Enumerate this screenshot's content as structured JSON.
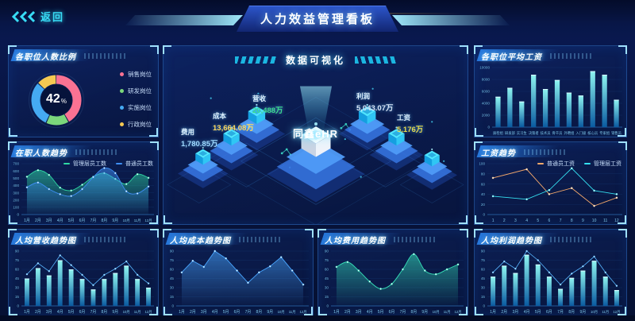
{
  "header": {
    "back_label": "返回",
    "title": "人力效益管理看板",
    "accent_color": "#38dcf5"
  },
  "panels": {
    "position_ratio": {
      "title": "各职位人数比例"
    },
    "headcount_trend": {
      "title": "在职人数趋势"
    },
    "revenue_trend": {
      "title": "人均营收趋势图"
    },
    "visualization": {
      "title": "数据可视化",
      "brand": "同鑫eHR",
      "metrics": [
        {
          "label": "费用",
          "value": "1,780.85万",
          "color": "#9fd9ff"
        },
        {
          "label": "成本",
          "value": "13,664.08万",
          "color": "#ffd95e"
        },
        {
          "label": "营收",
          "value": "20,488万",
          "color": "#3ddc8f"
        },
        {
          "label": "利润",
          "value": "5,043.07万",
          "color": "#d8e6f7"
        },
        {
          "label": "工资",
          "value": "5,176万",
          "color": "#e5d94e"
        }
      ]
    },
    "cost_trend": {
      "title": "人均成本趋势图"
    },
    "expense_trend": {
      "title": "人均费用趋势图"
    },
    "avg_salary": {
      "title": "各职位平均工资"
    },
    "salary_trend": {
      "title": "工资趋势"
    },
    "profit_trend": {
      "title": "人均利润趋势图"
    }
  },
  "chart_data": {
    "position_ratio": {
      "type": "pie",
      "center_value": "42",
      "center_unit": "%",
      "segments": [
        {
          "label": "销售岗位",
          "value": 42,
          "color": "#fb7293"
        },
        {
          "label": "研发岗位",
          "value": 15,
          "color": "#7bd77b"
        },
        {
          "label": "实施岗位",
          "value": 30,
          "color": "#45aaf2"
        },
        {
          "label": "行政岗位",
          "value": 13,
          "color": "#f5c952"
        }
      ]
    },
    "headcount_trend": {
      "type": "area",
      "categories": [
        "1月",
        "2月",
        "3月",
        "4月",
        "5月",
        "6月",
        "7月",
        "8月",
        "9月",
        "10月",
        "11月",
        "12月"
      ],
      "y_ticks": [
        0,
        100,
        200,
        300,
        400,
        500,
        600,
        700
      ],
      "series": [
        {
          "name": "管理层员工数",
          "color": "#2fd8a4",
          "smooth": true,
          "fill": true,
          "values": [
            520,
            610,
            545,
            370,
            330,
            410,
            520,
            570,
            490,
            420,
            555,
            505
          ]
        },
        {
          "name": "普通员工数",
          "color": "#3e8ef5",
          "smooth": true,
          "fill": true,
          "values": [
            375,
            440,
            350,
            280,
            255,
            350,
            515,
            640,
            570,
            320,
            290,
            385
          ]
        }
      ]
    },
    "revenue_trend": {
      "type": "bar",
      "categories": [
        "1月",
        "2月",
        "3月",
        "4月",
        "5月",
        "6月",
        "7月",
        "8月",
        "9月",
        "10月",
        "11月",
        "12月"
      ],
      "y_ticks": [
        0,
        15,
        30,
        45,
        60,
        75,
        90
      ],
      "bars": [
        45,
        62,
        50,
        75,
        60,
        44,
        27,
        44,
        54,
        66,
        44,
        30
      ],
      "line": [
        52,
        70,
        57,
        83,
        67,
        51,
        34,
        51,
        61,
        73,
        51,
        37
      ]
    },
    "cost_trend": {
      "type": "area",
      "categories": [
        "1月",
        "2月",
        "3月",
        "4月",
        "5月",
        "6月",
        "7月",
        "8月",
        "9月",
        "10月",
        "11月",
        "12月"
      ],
      "y_ticks": [
        0,
        15,
        30,
        45,
        60,
        75,
        90
      ],
      "series": [
        {
          "name": "人均成本",
          "color": "#49a6ff",
          "smooth": false,
          "fill": true,
          "values": [
            55,
            74,
            64,
            90,
            78,
            58,
            38,
            55,
            65,
            80,
            58,
            35
          ]
        }
      ]
    },
    "expense_trend": {
      "type": "area",
      "categories": [
        "1月",
        "2月",
        "3月",
        "4月",
        "5月",
        "6月",
        "7月",
        "8月",
        "9月",
        "10月",
        "11月",
        "12月"
      ],
      "y_ticks": [
        0,
        15,
        30,
        45,
        60,
        75,
        90
      ],
      "series": [
        {
          "name": "人均费用",
          "color": "#35e0b8",
          "smooth": true,
          "fill": true,
          "values": [
            64,
            72,
            58,
            40,
            28,
            36,
            60,
            85,
            58,
            52,
            60,
            68
          ]
        }
      ]
    },
    "avg_salary": {
      "type": "bar",
      "categories": [
        "质检组",
        "研发部",
        "实习生",
        "决策者",
        "技术员",
        "骨干员",
        "外聘组",
        "入门级",
        "核心员",
        "专家组",
        "销售员"
      ],
      "y_ticks": [
        0,
        2000,
        4000,
        6000,
        8000,
        10000
      ],
      "bars": [
        5100,
        6600,
        4300,
        8800,
        6400,
        7900,
        5800,
        5300,
        9400,
        8800,
        4600
      ]
    },
    "salary_trend": {
      "type": "line",
      "categories": [
        "1",
        "2",
        "3",
        "4",
        "5",
        "6",
        "7",
        "8",
        "9",
        "10",
        "11",
        "12"
      ],
      "y_ticks": [
        0,
        20,
        40,
        60,
        80,
        100
      ],
      "series": [
        {
          "name": "普通员工资",
          "color": "#f5a96b",
          "x_idx": [
            0,
            3,
            5,
            7,
            9,
            11
          ],
          "values": [
            72,
            89,
            40,
            52,
            17,
            33
          ]
        },
        {
          "name": "管理层工资",
          "color": "#35e0f0",
          "x_idx": [
            0,
            3,
            5,
            7,
            9,
            11
          ],
          "values": [
            36,
            30,
            48,
            91,
            47,
            40
          ]
        }
      ]
    },
    "profit_trend": {
      "type": "bar",
      "categories": [
        "1月",
        "2月",
        "3月",
        "4月",
        "5月",
        "6月",
        "7月",
        "8月",
        "9月",
        "10月",
        "11月",
        "12月"
      ],
      "y_ticks": [
        0,
        15,
        30,
        45,
        60,
        75,
        90
      ],
      "bars": [
        48,
        66,
        54,
        84,
        68,
        48,
        28,
        46,
        58,
        74,
        48,
        26
      ],
      "line": [
        55,
        73,
        61,
        90,
        75,
        55,
        35,
        53,
        65,
        81,
        55,
        33
      ]
    }
  }
}
